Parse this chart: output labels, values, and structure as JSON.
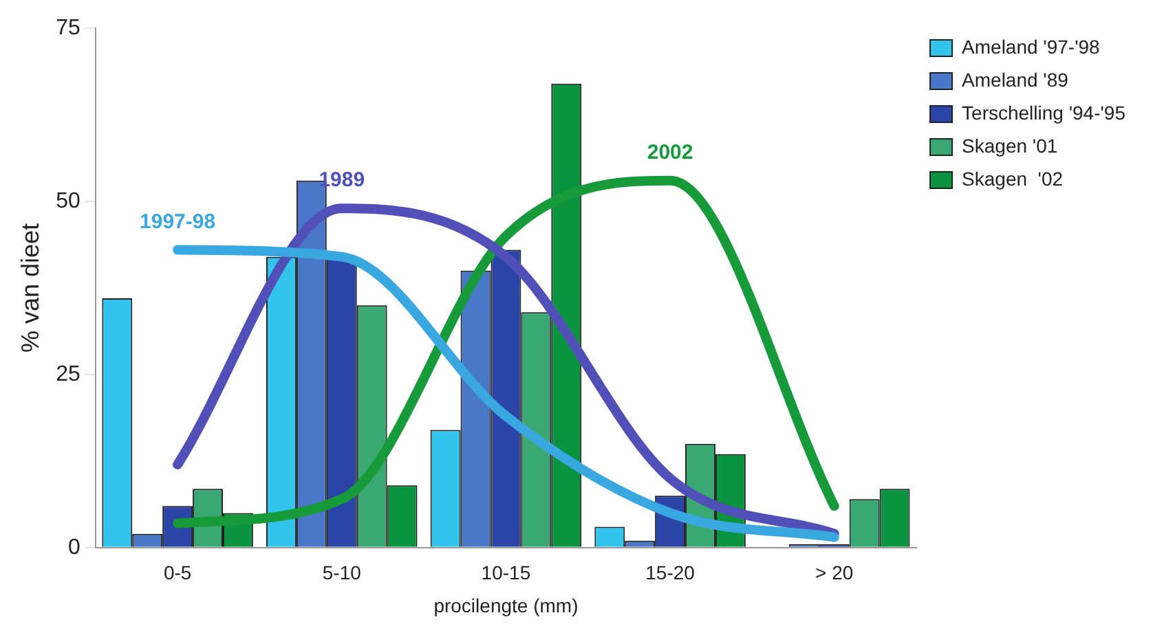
{
  "chart_data": {
    "type": "bar",
    "xlabel": "procilengte (mm)",
    "ylabel": "% van dieet",
    "categories": [
      "0-5",
      "5-10",
      "10-15",
      "15-20",
      "> 20"
    ],
    "ylim": [
      0,
      75
    ],
    "yticks": [
      0,
      25,
      50,
      75
    ],
    "grid": false,
    "legend": "top right",
    "series": [
      {
        "name": "Ameland '97-'98",
        "color": "#33c4ee",
        "values": [
          36,
          42,
          17,
          3,
          0
        ]
      },
      {
        "name": "Ameland '89",
        "color": "#4a78c8",
        "values": [
          2,
          53,
          40,
          1,
          0.5
        ]
      },
      {
        "name": "Terschelling '94-'95",
        "color": "#2b44a8",
        "values": [
          6,
          42,
          43,
          7.5,
          0.5
        ]
      },
      {
        "name": "Skagen '01",
        "color": "#3aa872",
        "values": [
          8.5,
          35,
          34,
          15,
          7
        ]
      },
      {
        "name": "Skagen  '02",
        "color": "#0a9440",
        "values": [
          5,
          9,
          67,
          13.5,
          8.5
        ]
      },
      {
        "type": "line",
        "name": "1997-98",
        "color": "#3aa8e0",
        "values": [
          43,
          42,
          19,
          5,
          1.5
        ]
      },
      {
        "type": "line",
        "name": "1989",
        "color": "#5050b8",
        "values": [
          12,
          49,
          42,
          10,
          2
        ]
      },
      {
        "type": "line",
        "name": "2002",
        "color": "#169a3a",
        "values": [
          3.5,
          7,
          45,
          53,
          6
        ]
      }
    ]
  }
}
